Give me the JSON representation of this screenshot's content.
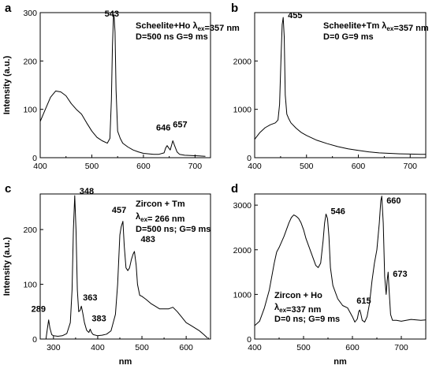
{
  "chart_data": [
    {
      "type": "line",
      "panel_label": "a",
      "ylabel": "Intensity (a.u.)",
      "xlabel": "",
      "xlim": [
        400,
        730
      ],
      "ylim": [
        0,
        300
      ],
      "xticks": [
        400,
        500,
        600,
        700
      ],
      "yticks": [
        0,
        100,
        200,
        300
      ],
      "annotation_lines": [
        {
          "parts": [
            {
              "t": "Scheelite+Ho λ"
            },
            {
              "t": "ex",
              "sub": true
            },
            {
              "t": "=357 nm"
            }
          ]
        },
        {
          "parts": [
            {
              "t": "D=500 ns G=9 ms"
            }
          ]
        }
      ],
      "peak_labels": [
        {
          "text": "543",
          "x": 543,
          "y": 285
        },
        {
          "text": "646",
          "x": 646,
          "y": 43
        },
        {
          "text": "657",
          "x": 657,
          "y": 50
        }
      ],
      "series": [
        {
          "x": [
            400,
            410,
            420,
            430,
            440,
            450,
            460,
            470,
            480,
            490,
            500,
            510,
            520,
            530,
            535,
            538,
            540,
            542,
            543,
            545,
            547,
            550,
            555,
            560,
            570,
            580,
            590,
            600,
            610,
            620,
            630,
            640,
            643,
            646,
            649,
            652,
            657,
            660,
            665,
            670,
            680,
            700,
            720
          ],
          "y": [
            75,
            100,
            125,
            138,
            136,
            128,
            112,
            100,
            90,
            72,
            55,
            42,
            35,
            30,
            40,
            120,
            230,
            292,
            295,
            260,
            140,
            55,
            40,
            30,
            22,
            16,
            12,
            9,
            8,
            7,
            7,
            10,
            20,
            25,
            20,
            16,
            35,
            26,
            12,
            7,
            5,
            4,
            3
          ]
        }
      ]
    },
    {
      "type": "line",
      "panel_label": "b",
      "ylabel": "",
      "xlabel": "",
      "xlim": [
        400,
        730
      ],
      "ylim": [
        0,
        3000
      ],
      "xticks": [
        400,
        500,
        600,
        700
      ],
      "yticks": [
        0,
        1000,
        2000
      ],
      "annotation_lines": [
        {
          "parts": [
            {
              "t": "Scheelite+Tm λ"
            },
            {
              "t": "ex",
              "sub": true
            },
            {
              "t": "=357 nm"
            }
          ]
        },
        {
          "parts": [
            {
              "t": "D=0 G=9 ms"
            }
          ]
        }
      ],
      "peak_labels": [
        {
          "text": "455",
          "x": 455,
          "y": 2850
        }
      ],
      "series": [
        {
          "x": [
            400,
            410,
            420,
            430,
            440,
            445,
            448,
            451,
            453,
            455,
            457,
            459,
            462,
            466,
            470,
            480,
            490,
            500,
            520,
            540,
            560,
            580,
            600,
            620,
            640,
            660,
            680,
            700,
            720,
            730
          ],
          "y": [
            380,
            520,
            620,
            680,
            720,
            780,
            1100,
            2100,
            2750,
            2900,
            2500,
            1300,
            900,
            800,
            720,
            610,
            520,
            460,
            360,
            290,
            230,
            185,
            150,
            120,
            100,
            90,
            80,
            75,
            70,
            68
          ]
        }
      ]
    },
    {
      "type": "line",
      "panel_label": "c",
      "ylabel": "Intensity (a.u.)",
      "xlabel": "nm",
      "xlim": [
        270,
        655
      ],
      "ylim": [
        0,
        265
      ],
      "xticks": [
        300,
        400,
        500,
        600
      ],
      "yticks": [
        0,
        100,
        200
      ],
      "annotation_lines": [
        {
          "parts": [
            {
              "t": "Zircon + Tm"
            }
          ]
        },
        {
          "parts": [
            {
              "t": "λ"
            },
            {
              "t": "ex",
              "sub": true
            },
            {
              "t": "= 266 nm"
            }
          ]
        },
        {
          "parts": [
            {
              "t": "D=500 ns; G=9 ms"
            }
          ]
        }
      ],
      "peak_labels": [
        {
          "text": "348",
          "x": 348,
          "y": 262
        },
        {
          "text": "289",
          "x": 289,
          "y": 35
        },
        {
          "text": "363",
          "x": 363,
          "y": 62
        },
        {
          "text": "383",
          "x": 383,
          "y": 18
        },
        {
          "text": "457",
          "x": 457,
          "y": 216
        },
        {
          "text": "483",
          "x": 483,
          "y": 160
        }
      ],
      "series": [
        {
          "x": [
            283,
            286,
            289,
            292,
            296,
            300,
            310,
            320,
            330,
            338,
            342,
            345,
            348,
            351,
            354,
            357,
            360,
            363,
            366,
            370,
            375,
            380,
            383,
            386,
            390,
            400,
            410,
            420,
            430,
            440,
            445,
            450,
            453,
            457,
            460,
            464,
            468,
            472,
            476,
            480,
            483,
            487,
            490,
            495,
            500,
            505,
            510,
            520,
            530,
            540,
            550,
            560,
            570,
            580,
            590,
            600,
            610,
            620,
            630,
            640,
            648
          ],
          "y": [
            0,
            18,
            35,
            20,
            8,
            6,
            5,
            6,
            10,
            30,
            90,
            200,
            262,
            200,
            90,
            50,
            52,
            60,
            48,
            30,
            16,
            12,
            18,
            12,
            8,
            6,
            7,
            9,
            15,
            45,
            100,
            190,
            205,
            215,
            170,
            130,
            125,
            130,
            145,
            155,
            160,
            135,
            100,
            80,
            78,
            75,
            72,
            65,
            60,
            55,
            55,
            55,
            58,
            50,
            40,
            30,
            25,
            20,
            15,
            8,
            2
          ]
        }
      ]
    },
    {
      "type": "line",
      "panel_label": "d",
      "ylabel": "",
      "xlabel": "nm",
      "xlim": [
        400,
        750
      ],
      "ylim": [
        0,
        3250
      ],
      "xticks": [
        400,
        500,
        600,
        700
      ],
      "yticks": [
        0,
        1000,
        2000,
        3000
      ],
      "annotation_lines": [
        {
          "parts": [
            {
              "t": "Zircon + Ho"
            }
          ]
        },
        {
          "parts": [
            {
              "t": "λ"
            },
            {
              "t": "ex",
              "sub": true
            },
            {
              "t": "=337 nm"
            }
          ]
        },
        {
          "parts": [
            {
              "t": "D=0 ns; G=9 ms"
            }
          ]
        }
      ],
      "peak_labels": [
        {
          "text": "546",
          "x": 546,
          "y": 2800
        },
        {
          "text": "615",
          "x": 615,
          "y": 650
        },
        {
          "text": "660",
          "x": 660,
          "y": 3250
        },
        {
          "text": "673",
          "x": 673,
          "y": 1500
        }
      ],
      "series": [
        {
          "x": [
            400,
            410,
            420,
            430,
            440,
            445,
            450,
            460,
            470,
            475,
            480,
            485,
            490,
            495,
            500,
            505,
            510,
            520,
            525,
            530,
            535,
            540,
            543,
            546,
            549,
            552,
            555,
            560,
            570,
            580,
            590,
            600,
            605,
            610,
            613,
            615,
            617,
            620,
            625,
            630,
            635,
            640,
            645,
            650,
            655,
            658,
            660,
            663,
            666,
            669,
            671,
            673,
            675,
            678,
            682,
            690,
            700,
            720,
            740,
            750
          ],
          "y": [
            300,
            400,
            700,
            1100,
            1700,
            1950,
            2050,
            2300,
            2600,
            2720,
            2780,
            2750,
            2700,
            2600,
            2450,
            2250,
            2100,
            1800,
            1650,
            1600,
            1700,
            2200,
            2600,
            2800,
            2700,
            2300,
            1600,
            1200,
            900,
            750,
            700,
            500,
            380,
            450,
            620,
            650,
            580,
            420,
            380,
            500,
            800,
            1300,
            1700,
            2000,
            2600,
            3100,
            3200,
            2600,
            1400,
            1000,
            1300,
            1500,
            1100,
            550,
            420,
            420,
            400,
            440,
            420,
            430
          ]
        }
      ]
    }
  ]
}
